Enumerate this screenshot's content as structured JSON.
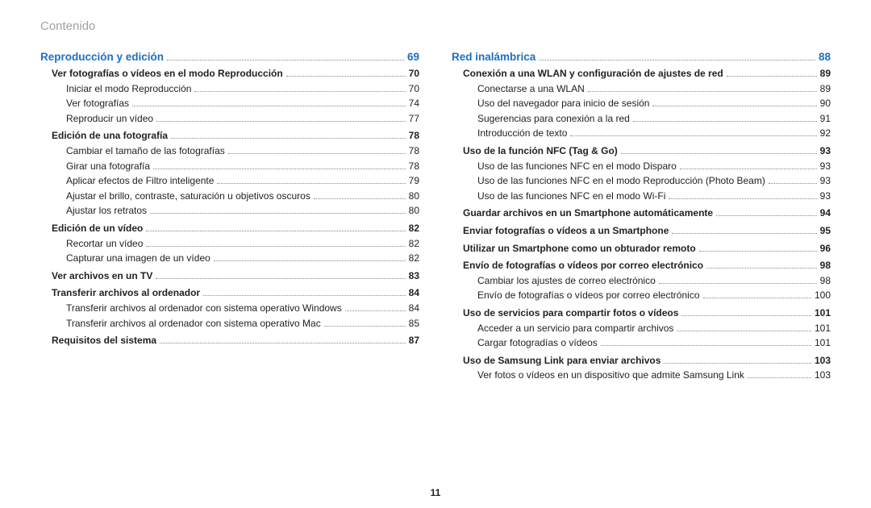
{
  "header": "Contenido",
  "page_number": "11",
  "colors": {
    "heading": "#1f6fbf",
    "header_text": "#9fa1a3",
    "body_text": "#222222",
    "dot_leader": "#888888",
    "background": "#ffffff"
  },
  "left": {
    "section": {
      "title": "Reproducción y edición",
      "page": "69"
    },
    "entries": [
      {
        "lvl": 1,
        "label": "Ver fotografías o vídeos en el modo Reproducción",
        "page": "70"
      },
      {
        "lvl": 2,
        "label": "Iniciar el modo Reproducción",
        "page": "70"
      },
      {
        "lvl": 2,
        "label": "Ver fotografías",
        "page": "74"
      },
      {
        "lvl": 2,
        "label": "Reproducir un vídeo",
        "page": "77"
      },
      {
        "lvl": 1,
        "label": "Edición de una fotografía",
        "page": "78"
      },
      {
        "lvl": 2,
        "label": "Cambiar el tamaño de las fotografías",
        "page": "78"
      },
      {
        "lvl": 2,
        "label": "Girar una fotografía",
        "page": "78"
      },
      {
        "lvl": 2,
        "label": "Aplicar efectos de Filtro inteligente",
        "page": "79"
      },
      {
        "lvl": 2,
        "label": "Ajustar el brillo, contraste, saturación u objetivos oscuros",
        "page": "80"
      },
      {
        "lvl": 2,
        "label": "Ajustar los retratos",
        "page": "80"
      },
      {
        "lvl": 1,
        "label": "Edición de un vídeo",
        "page": "82"
      },
      {
        "lvl": 2,
        "label": "Recortar un vídeo",
        "page": "82"
      },
      {
        "lvl": 2,
        "label": "Capturar una imagen de un vídeo",
        "page": "82"
      },
      {
        "lvl": 1,
        "label": "Ver archivos en un TV",
        "page": "83"
      },
      {
        "lvl": 1,
        "label": "Transferir archivos al ordenador",
        "page": "84"
      },
      {
        "lvl": 2,
        "label": "Transferir archivos al ordenador con sistema operativo Windows",
        "page": "84"
      },
      {
        "lvl": 2,
        "label": "Transferir archivos al ordenador con sistema operativo Mac",
        "page": "85"
      },
      {
        "lvl": 1,
        "label": "Requisitos del sistema",
        "page": "87"
      }
    ]
  },
  "right": {
    "section": {
      "title": "Red inalámbrica",
      "page": "88"
    },
    "entries": [
      {
        "lvl": 1,
        "label": "Conexión a una WLAN y configuración de ajustes de red",
        "page": "89"
      },
      {
        "lvl": 2,
        "label": "Conectarse a una WLAN",
        "page": "89"
      },
      {
        "lvl": 2,
        "label": "Uso del navegador para inicio de sesión",
        "page": "90"
      },
      {
        "lvl": 2,
        "label": "Sugerencias para conexión a la red",
        "page": "91"
      },
      {
        "lvl": 2,
        "label": "Introducción de texto",
        "page": "92"
      },
      {
        "lvl": 1,
        "label": "Uso de la función NFC (Tag & Go)",
        "page": "93"
      },
      {
        "lvl": 2,
        "label": "Uso de las funciones NFC en el modo Disparo",
        "page": "93"
      },
      {
        "lvl": 2,
        "label": "Uso de las funciones NFC en el modo Reproducción (Photo Beam)",
        "page": "93"
      },
      {
        "lvl": 2,
        "label": "Uso de las funciones NFC en el modo Wi-Fi",
        "page": "93"
      },
      {
        "lvl": 1,
        "label": "Guardar archivos en un Smartphone automáticamente",
        "page": "94"
      },
      {
        "lvl": 1,
        "label": "Enviar fotografías o vídeos a un Smartphone",
        "page": "95"
      },
      {
        "lvl": 1,
        "label": "Utilizar un Smartphone como un obturador remoto",
        "page": "96"
      },
      {
        "lvl": 1,
        "label": "Envío de fotografías o vídeos por correo electrónico",
        "page": "98"
      },
      {
        "lvl": 2,
        "label": "Cambiar los ajustes de correo electrónico",
        "page": "98"
      },
      {
        "lvl": 2,
        "label": "Envío de fotografías o vídeos por correo electrónico",
        "page": "100"
      },
      {
        "lvl": 1,
        "label": "Uso de servicios para compartir fotos o vídeos",
        "page": "101"
      },
      {
        "lvl": 2,
        "label": "Acceder a un servicio para compartir archivos",
        "page": "101"
      },
      {
        "lvl": 2,
        "label": "Cargar fotogradías o vídeos",
        "page": "101"
      },
      {
        "lvl": 1,
        "label": "Uso de Samsung Link para enviar archivos",
        "page": "103"
      },
      {
        "lvl": 2,
        "label": "Ver fotos o vídeos en un dispositivo que admite Samsung Link",
        "page": "103"
      }
    ]
  }
}
